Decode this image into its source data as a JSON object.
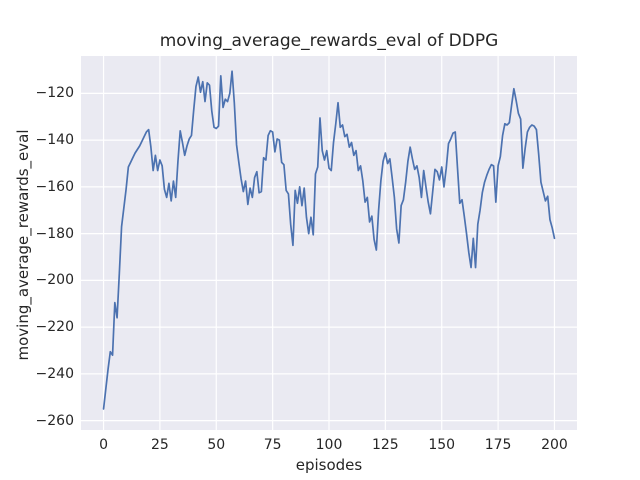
{
  "chart_data": {
    "type": "line",
    "title": "moving_average_rewards_eval of DDPG",
    "xlabel": "episodes",
    "ylabel": "moving_average_rewards_eval",
    "legend": null,
    "grid": true,
    "style": "seaborn-darkgrid",
    "xlim": [
      -10,
      210
    ],
    "ylim": [
      -264,
      -104
    ],
    "xticks": [
      0,
      25,
      50,
      75,
      100,
      125,
      150,
      175,
      200
    ],
    "xtick_labels": [
      "0",
      "25",
      "50",
      "75",
      "100",
      "125",
      "150",
      "175",
      "200"
    ],
    "yticks": [
      -120,
      -140,
      -160,
      -180,
      -200,
      -220,
      -240,
      -260
    ],
    "ytick_labels": [
      "−120",
      "−140",
      "−160",
      "−180",
      "−200",
      "−220",
      "−240",
      "−260"
    ],
    "colors": {
      "line": "#4c72b0",
      "plot_background": "#eaeaf2",
      "grid": "#ffffff",
      "text": "#262626",
      "figure_background": "#ffffff"
    },
    "x_start": 0,
    "x_step": 1,
    "series": [
      {
        "name": "moving_average_rewards_eval",
        "values": [
          -255,
          -246.5,
          -238,
          -230.5,
          -232,
          -209.5,
          -216,
          -197,
          -177,
          -169,
          -161,
          -151.5,
          -149.5,
          -147.5,
          -145.5,
          -144,
          -142.5,
          -140.5,
          -138.5,
          -136.5,
          -135.5,
          -143,
          -153,
          -146.5,
          -153,
          -148.5,
          -151,
          -161,
          -164.5,
          -158.5,
          -166,
          -157.5,
          -164.5,
          -149,
          -136,
          -141,
          -146.5,
          -142.5,
          -139.5,
          -138,
          -127,
          -117,
          -113,
          -119.5,
          -115,
          -123.5,
          -115.5,
          -116.5,
          -127.5,
          -134.5,
          -135,
          -134,
          -112.5,
          -126,
          -122.5,
          -123.5,
          -120,
          -110.5,
          -124,
          -142,
          -149.5,
          -156.5,
          -162,
          -157.5,
          -167.5,
          -160.5,
          -164.5,
          -156,
          -153.5,
          -162.5,
          -162,
          -147.5,
          -148.5,
          -138,
          -136,
          -136.5,
          -145,
          -139.5,
          -140,
          -149.5,
          -150.5,
          -161.5,
          -163,
          -176,
          -185,
          -161.5,
          -167,
          -160,
          -168,
          -160.5,
          -173,
          -180,
          -173,
          -180.5,
          -154.5,
          -151.5,
          -130.5,
          -144.5,
          -148.5,
          -144.5,
          -152,
          -153,
          -141,
          -133,
          -124,
          -134.5,
          -133.5,
          -138.5,
          -137.5,
          -143,
          -141,
          -146.5,
          -144.5,
          -153,
          -151,
          -157.5,
          -166.5,
          -164.5,
          -175,
          -172.5,
          -182.5,
          -187,
          -170,
          -157.5,
          -149,
          -145.5,
          -150,
          -148,
          -156,
          -164.5,
          -178,
          -184,
          -168,
          -165.5,
          -158,
          -149,
          -143,
          -148,
          -152.5,
          -151,
          -156,
          -164.5,
          -153,
          -160,
          -166.5,
          -171.5,
          -162,
          -152.5,
          -153.5,
          -157,
          -151.5,
          -160,
          -152,
          -141.5,
          -139.5,
          -137,
          -136.5,
          -152,
          -167,
          -165.5,
          -172.5,
          -180,
          -188,
          -194.5,
          -182,
          -194.5,
          -176,
          -170,
          -162.5,
          -158,
          -155,
          -152.5,
          -150.5,
          -151,
          -166.5,
          -151,
          -147,
          -138,
          -133,
          -133.5,
          -132.5,
          -125,
          -118,
          -123,
          -128.5,
          -131,
          -152,
          -143.5,
          -136.5,
          -134.5,
          -133.5,
          -134,
          -135.5,
          -146,
          -158,
          -162,
          -166,
          -164,
          -174,
          -177.5,
          -182
        ]
      }
    ]
  }
}
